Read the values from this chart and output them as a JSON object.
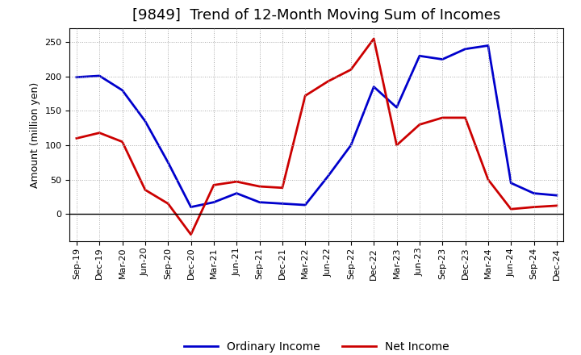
{
  "title": "[9849]  Trend of 12-Month Moving Sum of Incomes",
  "ylabel": "Amount (million yen)",
  "x_labels": [
    "Sep-19",
    "Dec-19",
    "Mar-20",
    "Jun-20",
    "Sep-20",
    "Dec-20",
    "Mar-21",
    "Jun-21",
    "Sep-21",
    "Dec-21",
    "Mar-22",
    "Jun-22",
    "Sep-22",
    "Dec-22",
    "Mar-23",
    "Jun-23",
    "Sep-23",
    "Dec-23",
    "Mar-24",
    "Jun-24",
    "Sep-24",
    "Dec-24"
  ],
  "ordinary_income": [
    199,
    201,
    180,
    135,
    75,
    10,
    17,
    30,
    17,
    15,
    13,
    55,
    100,
    185,
    155,
    230,
    225,
    240,
    245,
    45,
    30,
    27
  ],
  "net_income": [
    110,
    118,
    105,
    35,
    15,
    -30,
    42,
    47,
    40,
    38,
    172,
    193,
    210,
    255,
    100,
    130,
    140,
    140,
    50,
    7,
    10,
    12
  ],
  "ordinary_color": "#0000cc",
  "net_color": "#cc0000",
  "ylim_min": -40,
  "ylim_max": 270,
  "yticks": [
    0,
    50,
    100,
    150,
    200,
    250
  ],
  "background_color": "#ffffff",
  "grid_color": "#aaaaaa",
  "line_width": 2.0,
  "title_fontsize": 13,
  "title_fontweight": "normal",
  "ylabel_fontsize": 9,
  "tick_fontsize": 8,
  "legend_fontsize": 10
}
